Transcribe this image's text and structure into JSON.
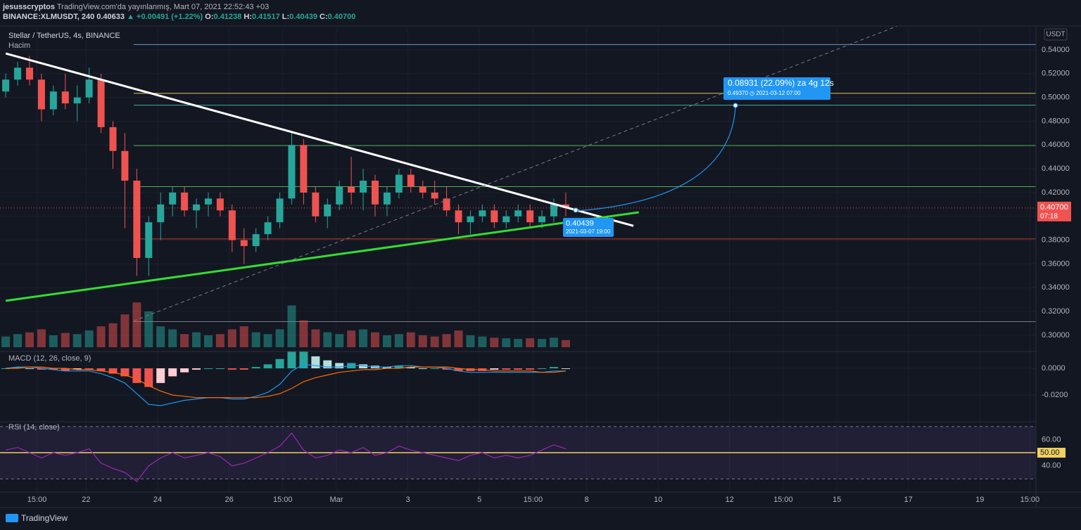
{
  "header": {
    "author": "jesusscryptos",
    "published": "TradingView.com'da yayınlanmış, Mart 07, 2021 22:52:43 +03",
    "symbol": "BINANCE:XLMUSDT, 240",
    "price": "0.40633",
    "change": "▲ +0.00491 (+1.22%)",
    "o_label": "O:",
    "o": "0.41238",
    "h_label": "H:",
    "h": "0.41517",
    "l_label": "L:",
    "l": "0.40439",
    "c_label": "C:",
    "c": "0.40700"
  },
  "footer": "TradingView",
  "chart_data": {
    "type": "candlestick",
    "title": "Stellar / TetherUS, 4s, BINANCE",
    "volume_label": "Hacim",
    "currency": "USDT",
    "xlim": [
      19.59,
      48.57
    ],
    "xticks": [
      {
        "value": 20.625,
        "label": "15:00"
      },
      {
        "value": 22,
        "label": "22"
      },
      {
        "value": 24,
        "label": "24"
      },
      {
        "value": 26,
        "label": "26"
      },
      {
        "value": 27.5,
        "label": "15:00"
      },
      {
        "value": 29,
        "label": "Mar"
      },
      {
        "value": 31,
        "label": "3"
      },
      {
        "value": 33,
        "label": "5"
      },
      {
        "value": 34.5,
        "label": "15:00"
      },
      {
        "value": 36,
        "label": "8"
      },
      {
        "value": 38,
        "label": "10"
      },
      {
        "value": 40,
        "label": "12"
      },
      {
        "value": 41.5,
        "label": "15:00"
      },
      {
        "value": 43,
        "label": "15"
      },
      {
        "value": 45,
        "label": "17"
      },
      {
        "value": 47,
        "label": "19"
      },
      {
        "value": 48.4,
        "label": "15:00"
      }
    ],
    "ylim": [
      0.2899,
      0.5583
    ],
    "yticks": [
      {
        "value": 0.3,
        "label": "0.30000"
      },
      {
        "value": 0.32,
        "label": "0.32000"
      },
      {
        "value": 0.34,
        "label": "0.34000"
      },
      {
        "value": 0.36,
        "label": "0.36000"
      },
      {
        "value": 0.38,
        "label": "0.38000"
      },
      {
        "value": 0.4,
        "label": "0.40000"
      },
      {
        "value": 0.42,
        "label": "0.42000"
      },
      {
        "value": 0.44,
        "label": "0.44000"
      },
      {
        "value": 0.46,
        "label": "0.46000"
      },
      {
        "value": 0.48,
        "label": "0.48000"
      },
      {
        "value": 0.5,
        "label": "0.50000"
      },
      {
        "value": 0.52,
        "label": "0.52000"
      },
      {
        "value": 0.54,
        "label": "0.54000"
      }
    ],
    "grid": true,
    "up_color": "#26a69a",
    "down_color": "#ef5350",
    "x": [
      19.75,
      20.083,
      20.417,
      20.75,
      21.083,
      21.417,
      21.75,
      22.083,
      22.417,
      22.75,
      23.083,
      23.417,
      23.75,
      24.083,
      24.417,
      24.75,
      25.083,
      25.417,
      25.75,
      26.083,
      26.417,
      26.75,
      27.083,
      27.417,
      27.75,
      28.083,
      28.417,
      28.75,
      29.083,
      29.417,
      29.75,
      30.083,
      30.417,
      30.75,
      31.083,
      31.417,
      31.75,
      32.083,
      32.417,
      32.75,
      33.083,
      33.417,
      33.75,
      34.083,
      34.417,
      34.75,
      35.083,
      35.417
    ],
    "ohlc": [
      [
        0.505,
        0.52,
        0.5,
        0.515
      ],
      [
        0.515,
        0.53,
        0.51,
        0.525
      ],
      [
        0.525,
        0.535,
        0.51,
        0.515
      ],
      [
        0.515,
        0.52,
        0.48,
        0.49
      ],
      [
        0.49,
        0.51,
        0.485,
        0.505
      ],
      [
        0.505,
        0.52,
        0.49,
        0.495
      ],
      [
        0.495,
        0.51,
        0.48,
        0.5
      ],
      [
        0.5,
        0.525,
        0.495,
        0.515
      ],
      [
        0.515,
        0.52,
        0.47,
        0.475
      ],
      [
        0.475,
        0.48,
        0.44,
        0.455
      ],
      [
        0.455,
        0.47,
        0.39,
        0.43
      ],
      [
        0.43,
        0.44,
        0.35,
        0.365
      ],
      [
        0.365,
        0.4,
        0.35,
        0.395
      ],
      [
        0.395,
        0.42,
        0.38,
        0.41
      ],
      [
        0.41,
        0.425,
        0.4,
        0.42
      ],
      [
        0.42,
        0.425,
        0.4,
        0.405
      ],
      [
        0.405,
        0.415,
        0.39,
        0.41
      ],
      [
        0.41,
        0.42,
        0.4,
        0.415
      ],
      [
        0.415,
        0.42,
        0.4,
        0.405
      ],
      [
        0.405,
        0.41,
        0.37,
        0.38
      ],
      [
        0.38,
        0.39,
        0.36,
        0.375
      ],
      [
        0.375,
        0.39,
        0.37,
        0.385
      ],
      [
        0.385,
        0.4,
        0.38,
        0.395
      ],
      [
        0.395,
        0.42,
        0.39,
        0.415
      ],
      [
        0.415,
        0.47,
        0.41,
        0.46
      ],
      [
        0.46,
        0.465,
        0.41,
        0.42
      ],
      [
        0.42,
        0.425,
        0.395,
        0.4
      ],
      [
        0.4,
        0.415,
        0.39,
        0.41
      ],
      [
        0.41,
        0.43,
        0.405,
        0.425
      ],
      [
        0.425,
        0.45,
        0.41,
        0.42
      ],
      [
        0.42,
        0.44,
        0.405,
        0.43
      ],
      [
        0.43,
        0.435,
        0.4,
        0.41
      ],
      [
        0.41,
        0.425,
        0.4,
        0.42
      ],
      [
        0.42,
        0.44,
        0.415,
        0.435
      ],
      [
        0.435,
        0.44,
        0.42,
        0.425
      ],
      [
        0.425,
        0.43,
        0.415,
        0.42
      ],
      [
        0.42,
        0.43,
        0.41,
        0.415
      ],
      [
        0.415,
        0.425,
        0.4,
        0.405
      ],
      [
        0.405,
        0.41,
        0.385,
        0.395
      ],
      [
        0.395,
        0.405,
        0.385,
        0.4
      ],
      [
        0.4,
        0.41,
        0.395,
        0.405
      ],
      [
        0.405,
        0.41,
        0.39,
        0.395
      ],
      [
        0.395,
        0.405,
        0.39,
        0.4
      ],
      [
        0.4,
        0.41,
        0.395,
        0.405
      ],
      [
        0.405,
        0.41,
        0.39,
        0.395
      ],
      [
        0.395,
        0.405,
        0.39,
        0.4
      ],
      [
        0.4,
        0.415,
        0.395,
        0.41
      ],
      [
        0.41,
        0.42,
        0.4,
        0.407
      ]
    ],
    "volume": {
      "ylim": [
        0,
        100
      ],
      "values": [
        18,
        22,
        25,
        30,
        20,
        24,
        22,
        28,
        35,
        40,
        55,
        75,
        60,
        35,
        30,
        22,
        25,
        20,
        22,
        30,
        35,
        25,
        22,
        30,
        70,
        45,
        30,
        25,
        22,
        28,
        30,
        25,
        20,
        22,
        25,
        20,
        18,
        22,
        28,
        20,
        18,
        16,
        15,
        14,
        15,
        14,
        16,
        12
      ]
    },
    "levels": [
      {
        "value": 0.5445,
        "color": "#5b9bd5"
      },
      {
        "value": 0.5035,
        "color": "#e0c060"
      },
      {
        "value": 0.4935,
        "color": "#3fa8a0"
      },
      {
        "value": 0.4595,
        "color": "#4caf50"
      },
      {
        "value": 0.425,
        "color": "#4caf50"
      },
      {
        "value": 0.381,
        "color": "#c0392b"
      },
      {
        "value": 0.3115,
        "color": "#787b86"
      }
    ],
    "trendlines": [
      {
        "color": "#ffffff",
        "width": 3,
        "points": [
          [
            19.75,
            0.537
          ],
          [
            37.31,
            0.392
          ]
        ]
      },
      {
        "color": "#33dd33",
        "width": 3,
        "points": [
          [
            19.75,
            0.329
          ],
          [
            37.46,
            0.4034
          ]
        ]
      },
      {
        "color": "#787b86",
        "width": 1,
        "dash": true,
        "points": [
          [
            23.33,
            0.312
          ],
          [
            44.69,
            0.56
          ]
        ]
      }
    ],
    "last_price": {
      "value": 0.407,
      "label": "0.40700",
      "countdown": "07:18"
    },
    "projection": {
      "text": "0.08931 (22.09%) za 4g 12s",
      "price": "0.49370",
      "time": "2021-03-12  07:00"
    },
    "low_marker": {
      "price": "0.40439",
      "time": "2021-03-07 19:00"
    },
    "macd": {
      "title": "MACD (12, 26, close, 9)",
      "ylim": [
        -0.039,
        0.0116
      ],
      "yticks": [
        {
          "value": 0,
          "label": "0.0000"
        },
        {
          "value": -0.02,
          "label": "-0.0200"
        }
      ],
      "macd_color": "#2196f3",
      "signal_color": "#ff6d00",
      "histogram": [
        0,
        0.001,
        0,
        -0.001,
        -0.001,
        -0.002,
        -0.001,
        -0.001,
        -0.002,
        -0.004,
        -0.006,
        -0.011,
        -0.014,
        -0.011,
        -0.006,
        -0.003,
        -0.001,
        0,
        0,
        -0.001,
        -0.001,
        0.001,
        0.003,
        0.007,
        0.013,
        0.013,
        0.009,
        0.006,
        0.004,
        0.004,
        0.003,
        0.002,
        0.001,
        0.002,
        0.001,
        0,
        0,
        -0.001,
        -0.002,
        -0.002,
        -0.002,
        -0.001,
        -0.001,
        -0.001,
        -0.001,
        0,
        0.001,
        0
      ],
      "macd": [
        0,
        0.001,
        0.001,
        0,
        -0.001,
        -0.002,
        -0.002,
        -0.002,
        -0.004,
        -0.007,
        -0.011,
        -0.019,
        -0.027,
        -0.028,
        -0.026,
        -0.024,
        -0.023,
        -0.022,
        -0.022,
        -0.023,
        -0.023,
        -0.021,
        -0.018,
        -0.012,
        -0.002,
        0.003,
        0.002,
        0.001,
        0.001,
        0.002,
        0.002,
        0.001,
        0.001,
        0.002,
        0.002,
        0.001,
        0.001,
        0,
        -0.002,
        -0.003,
        -0.003,
        -0.003,
        -0.003,
        -0.003,
        -0.003,
        -0.003,
        -0.002,
        -0.002
      ],
      "signal": [
        0,
        0,
        0.001,
        0.001,
        0,
        0,
        -0.001,
        -0.001,
        -0.002,
        -0.003,
        -0.005,
        -0.008,
        -0.013,
        -0.017,
        -0.02,
        -0.021,
        -0.022,
        -0.022,
        -0.022,
        -0.022,
        -0.022,
        -0.022,
        -0.021,
        -0.019,
        -0.015,
        -0.01,
        -0.007,
        -0.005,
        -0.003,
        -0.002,
        -0.001,
        -0.001,
        0,
        0,
        0.001,
        0.001,
        0.001,
        0.001,
        0,
        -0.001,
        -0.001,
        -0.002,
        -0.002,
        -0.002,
        -0.002,
        -0.003,
        -0.003,
        -0.002
      ]
    },
    "rsi": {
      "title": "RSI (14, close)",
      "ylim": [
        21,
        72.6
      ],
      "yticks": [
        {
          "value": 60,
          "label": "60.00"
        },
        {
          "value": 40,
          "label": "40.00"
        }
      ],
      "mid": {
        "value": 50,
        "label": "50.00"
      },
      "bands": [
        30,
        70
      ],
      "color": "#9c27b0",
      "values": [
        52,
        54,
        50,
        46,
        50,
        48,
        50,
        53,
        42,
        38,
        35,
        28,
        40,
        46,
        50,
        46,
        48,
        50,
        47,
        40,
        42,
        46,
        50,
        55,
        65,
        52,
        46,
        48,
        52,
        50,
        54,
        48,
        50,
        55,
        52,
        50,
        48,
        46,
        44,
        48,
        50,
        46,
        48,
        46,
        48,
        52,
        56,
        53
      ]
    }
  }
}
